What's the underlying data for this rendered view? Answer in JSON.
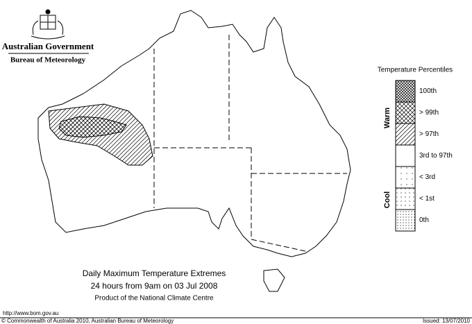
{
  "header": {
    "title": "Australian Government",
    "subtitle": "Bureau of Meteorology"
  },
  "legend": {
    "title": "Temperature Percentiles",
    "warm": "Warm",
    "cool": "Cool",
    "items": [
      "100th",
      "> 99th",
      "> 97th",
      "3rd to 97th",
      "< 3rd",
      "< 1st",
      "0th"
    ]
  },
  "caption": {
    "title": "Daily Maximum Temperature Extremes",
    "period": "24 hours from 9am on 03 Jul 2008",
    "source": "Product of the National Climate Centre"
  },
  "footer": {
    "url": "http://www.bom.gov.au",
    "copyright": "© Commonwealth of Australia 2010, Australian Bureau of Meteorology",
    "issued": "Issued: 13/07/2010"
  }
}
